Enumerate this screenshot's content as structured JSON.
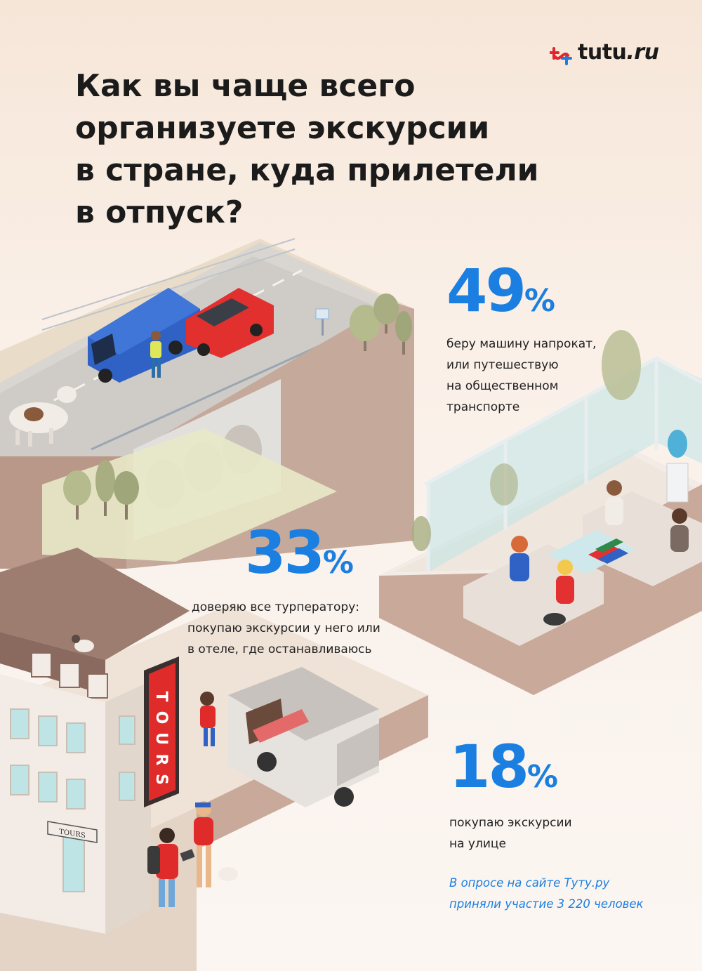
{
  "brand": {
    "logo_text": "tutu",
    "logo_suffix": ".ru",
    "accent": "#1a7fe0",
    "logo_red": "#e3262d",
    "logo_blue": "#1a7fe0"
  },
  "title_lines": [
    "Как вы чаще всего",
    "организуете экскурсии",
    "в стране, куда прилетели",
    "в отпуск?"
  ],
  "stats": [
    {
      "value": "49",
      "unit": "%",
      "lines": [
        "беру машину напрокат,",
        "или путешествую",
        "на общественном",
        "транспорте"
      ]
    },
    {
      "value": "33",
      "unit": "%",
      "lines": [
        "доверяю все турператору:",
        "покупаю экскурсии у него или",
        "в отеле, где останавливаюсь"
      ]
    },
    {
      "value": "18",
      "unit": "%",
      "lines": [
        "покупаю экскурсии",
        "на улице"
      ]
    }
  ],
  "survey_lines": [
    "В опросе на сайте Туту.ру",
    "приняли участие 3 220 человек"
  ],
  "signs": {
    "vertical": [
      "T",
      "O",
      "U",
      "R",
      "S"
    ],
    "shop": "TOURS"
  },
  "icons": {
    "logo": "tutu-logo-icon",
    "road_scene": "road-bridge-illustration",
    "lounge_scene": "hotel-lounge-illustration",
    "street_scene": "street-tours-illustration"
  }
}
